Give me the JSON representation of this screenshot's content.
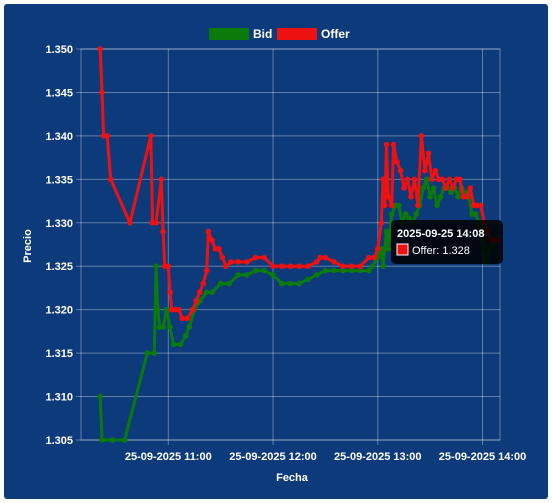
{
  "chart_data": {
    "type": "line",
    "xlabel": "Fecha",
    "ylabel": "Precio",
    "ylim": [
      1.305,
      1.35
    ],
    "yticks": [
      "1.305",
      "1.310",
      "1.315",
      "1.320",
      "1.325",
      "1.330",
      "1.335",
      "1.340",
      "1.345",
      "1.350"
    ],
    "xticks": [
      "25-09-2025 11:00",
      "25-09-2025 12:00",
      "25-09-2025 13:00",
      "25-09-2025 14:00"
    ],
    "legend": "top",
    "grid": true,
    "series": [
      {
        "name": "Bid",
        "color": "#0b7a0b",
        "points": [
          [
            "10:21",
            1.31
          ],
          [
            "10:22",
            1.305
          ],
          [
            "10:28",
            1.305
          ],
          [
            "10:35",
            1.305
          ],
          [
            "10:48",
            1.315
          ],
          [
            "10:52",
            1.315
          ],
          [
            "10:53",
            1.325
          ],
          [
            "10:54",
            1.32
          ],
          [
            "10:55",
            1.318
          ],
          [
            "10:57",
            1.318
          ],
          [
            "10:59",
            1.32
          ],
          [
            "11:01",
            1.318
          ],
          [
            "11:03",
            1.316
          ],
          [
            "11:07",
            1.316
          ],
          [
            "11:10",
            1.317
          ],
          [
            "11:12",
            1.318
          ],
          [
            "11:15",
            1.32
          ],
          [
            "11:18",
            1.321
          ],
          [
            "11:22",
            1.322
          ],
          [
            "11:25",
            1.322
          ],
          [
            "11:30",
            1.323
          ],
          [
            "11:35",
            1.323
          ],
          [
            "11:40",
            1.324
          ],
          [
            "11:45",
            1.324
          ],
          [
            "11:50",
            1.3245
          ],
          [
            "11:55",
            1.3245
          ],
          [
            "12:00",
            1.324
          ],
          [
            "12:05",
            1.323
          ],
          [
            "12:10",
            1.323
          ],
          [
            "12:15",
            1.323
          ],
          [
            "12:20",
            1.3235
          ],
          [
            "12:25",
            1.324
          ],
          [
            "12:30",
            1.3245
          ],
          [
            "12:35",
            1.3245
          ],
          [
            "12:40",
            1.3245
          ],
          [
            "12:45",
            1.3245
          ],
          [
            "12:50",
            1.3245
          ],
          [
            "12:55",
            1.3245
          ],
          [
            "12:57",
            1.325
          ],
          [
            "13:00",
            1.326
          ],
          [
            "13:02",
            1.327
          ],
          [
            "13:03",
            1.325
          ],
          [
            "13:05",
            1.329
          ],
          [
            "13:06",
            1.327
          ],
          [
            "13:08",
            1.331
          ],
          [
            "13:10",
            1.332
          ],
          [
            "13:12",
            1.332
          ],
          [
            "13:14",
            1.33
          ],
          [
            "13:16",
            1.331
          ],
          [
            "13:18",
            1.3305
          ],
          [
            "13:20",
            1.33
          ],
          [
            "13:22",
            1.331
          ],
          [
            "13:24",
            1.332
          ],
          [
            "13:26",
            1.334
          ],
          [
            "13:28",
            1.335
          ],
          [
            "13:30",
            1.333
          ],
          [
            "13:32",
            1.334
          ],
          [
            "13:34",
            1.332
          ],
          [
            "13:36",
            1.333
          ],
          [
            "13:38",
            1.334
          ],
          [
            "13:40",
            1.334
          ],
          [
            "13:42",
            1.3335
          ],
          [
            "13:44",
            1.334
          ],
          [
            "13:46",
            1.333
          ],
          [
            "13:48",
            1.334
          ],
          [
            "13:50",
            1.3335
          ],
          [
            "13:52",
            1.333
          ],
          [
            "13:54",
            1.331
          ],
          [
            "13:56",
            1.331
          ],
          [
            "13:58",
            1.33
          ],
          [
            "14:00",
            1.328
          ],
          [
            "14:02",
            1.3255
          ],
          [
            "14:04",
            1.327
          ],
          [
            "14:06",
            1.3275
          ]
        ]
      },
      {
        "name": "Offer",
        "color": "#ee1111",
        "points": [
          [
            "10:21",
            1.35
          ],
          [
            "10:22",
            1.345
          ],
          [
            "10:23",
            1.34
          ],
          [
            "10:25",
            1.34
          ],
          [
            "10:27",
            1.335
          ],
          [
            "10:38",
            1.33
          ],
          [
            "10:50",
            1.34
          ],
          [
            "10:51",
            1.33
          ],
          [
            "10:53",
            1.33
          ],
          [
            "10:56",
            1.335
          ],
          [
            "10:57",
            1.329
          ],
          [
            "10:58",
            1.325
          ],
          [
            "11:00",
            1.325
          ],
          [
            "11:01",
            1.322
          ],
          [
            "11:02",
            1.32
          ],
          [
            "11:04",
            1.32
          ],
          [
            "11:06",
            1.32
          ],
          [
            "11:08",
            1.319
          ],
          [
            "11:11",
            1.319
          ],
          [
            "11:14",
            1.32
          ],
          [
            "11:16",
            1.321
          ],
          [
            "11:18",
            1.322
          ],
          [
            "11:20",
            1.323
          ],
          [
            "11:22",
            1.3245
          ],
          [
            "11:23",
            1.329
          ],
          [
            "11:25",
            1.328
          ],
          [
            "11:27",
            1.327
          ],
          [
            "11:29",
            1.327
          ],
          [
            "11:31",
            1.326
          ],
          [
            "11:33",
            1.325
          ],
          [
            "11:36",
            1.3255
          ],
          [
            "11:40",
            1.3255
          ],
          [
            "11:45",
            1.3255
          ],
          [
            "11:50",
            1.326
          ],
          [
            "11:55",
            1.326
          ],
          [
            "12:00",
            1.325
          ],
          [
            "12:05",
            1.325
          ],
          [
            "12:10",
            1.325
          ],
          [
            "12:15",
            1.325
          ],
          [
            "12:20",
            1.325
          ],
          [
            "12:25",
            1.3255
          ],
          [
            "12:27",
            1.326
          ],
          [
            "12:30",
            1.326
          ],
          [
            "12:35",
            1.3255
          ],
          [
            "12:40",
            1.325
          ],
          [
            "12:45",
            1.325
          ],
          [
            "12:50",
            1.325
          ],
          [
            "12:55",
            1.326
          ],
          [
            "12:58",
            1.326
          ],
          [
            "13:00",
            1.327
          ],
          [
            "13:02",
            1.33
          ],
          [
            "13:03",
            1.335
          ],
          [
            "13:04",
            1.332
          ],
          [
            "13:05",
            1.339
          ],
          [
            "13:06",
            1.333
          ],
          [
            "13:08",
            1.332
          ],
          [
            "13:09",
            1.339
          ],
          [
            "13:11",
            1.337
          ],
          [
            "13:13",
            1.336
          ],
          [
            "13:15",
            1.334
          ],
          [
            "13:17",
            1.335
          ],
          [
            "13:19",
            1.333
          ],
          [
            "13:21",
            1.335
          ],
          [
            "13:23",
            1.332
          ],
          [
            "13:25",
            1.34
          ],
          [
            "13:27",
            1.336
          ],
          [
            "13:29",
            1.338
          ],
          [
            "13:31",
            1.335
          ],
          [
            "13:33",
            1.336
          ],
          [
            "13:35",
            1.335
          ],
          [
            "13:37",
            1.335
          ],
          [
            "13:39",
            1.334
          ],
          [
            "13:41",
            1.335
          ],
          [
            "13:43",
            1.334
          ],
          [
            "13:45",
            1.335
          ],
          [
            "13:47",
            1.335
          ],
          [
            "13:49",
            1.333
          ],
          [
            "13:51",
            1.333
          ],
          [
            "13:53",
            1.334
          ],
          [
            "13:55",
            1.332
          ],
          [
            "13:57",
            1.332
          ],
          [
            "13:59",
            1.332
          ],
          [
            "14:01",
            1.33
          ],
          [
            "14:03",
            1.329
          ],
          [
            "14:05",
            1.328
          ],
          [
            "14:06",
            1.328
          ],
          [
            "14:08",
            1.328
          ]
        ]
      }
    ],
    "tooltip": {
      "title": "2025-09-25 14:08",
      "label": "Offer: 1.328"
    }
  }
}
